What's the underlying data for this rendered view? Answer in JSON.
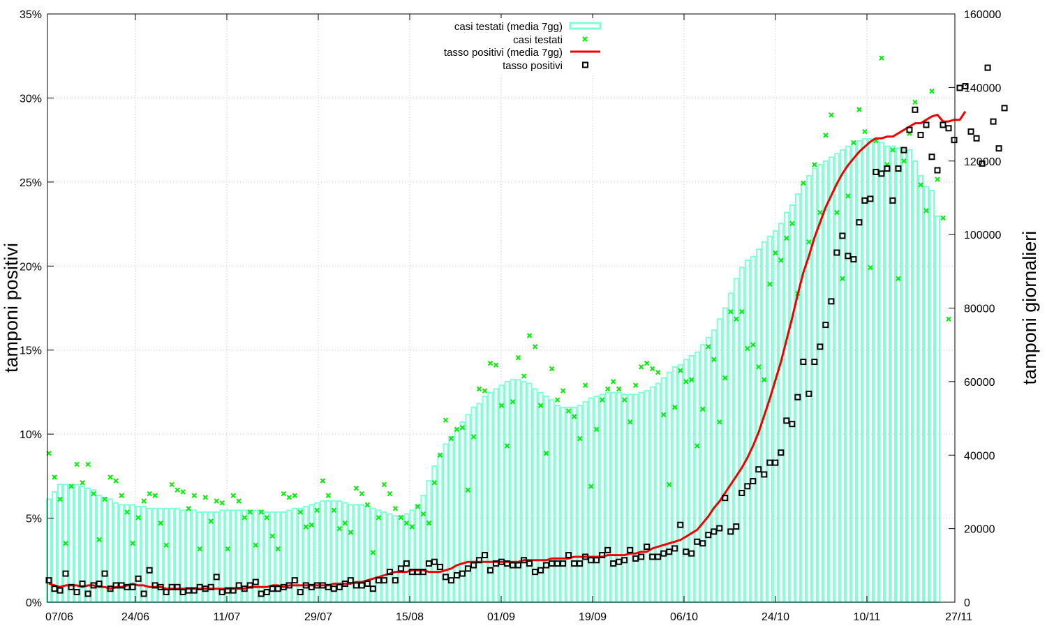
{
  "chart_data": {
    "type": "bar+line+scatter",
    "x_tick_labels": [
      "07/06",
      "24/06",
      "11/07",
      "29/07",
      "15/08",
      "01/09",
      "19/09",
      "06/10",
      "24/10",
      "10/11",
      "27/11"
    ],
    "y_left": {
      "label": "tamponi positivi",
      "ticks": [
        "0%",
        "5%",
        "10%",
        "15%",
        "20%",
        "25%",
        "30%",
        "35%"
      ],
      "range": [
        0,
        35
      ]
    },
    "y_right": {
      "label": "tamponi giornalieri",
      "ticks": [
        "0",
        "20000",
        "40000",
        "60000",
        "80000",
        "100000",
        "120000",
        "140000",
        "160000"
      ],
      "range": [
        0,
        160000
      ]
    },
    "legend": {
      "position": "top-center",
      "entries": [
        "casi testati (media 7gg)",
        "casi testati",
        "tasso positivi (media 7gg)",
        "tasso positivi"
      ]
    },
    "colors": {
      "bars": "#7fffd4",
      "scatter_tests": "#00ee00",
      "avg_rate": "#ee0000",
      "rate_points": "#000000",
      "grid": "#c8c8c8"
    },
    "series": [
      {
        "name": "casi testati (media 7gg)",
        "axis": "right",
        "kind": "bar",
        "values": [
          28000,
          30000,
          32000,
          32000,
          32000,
          32000,
          31500,
          31000,
          30500,
          29000,
          28500,
          28000,
          27000,
          26500,
          26500,
          26500,
          26000,
          26000,
          25500,
          25500,
          25500,
          25500,
          25500,
          25500,
          25000,
          25000,
          25000,
          24500,
          24500,
          24500,
          24500,
          25000,
          25000,
          25000,
          25000,
          25000,
          25000,
          25000,
          25000,
          24500,
          24500,
          24500,
          24500,
          25000,
          25500,
          25500,
          26000,
          26500,
          27000,
          27500,
          27500,
          27500,
          27500,
          27000,
          26500,
          26500,
          26500,
          26000,
          25500,
          25000,
          24500,
          24000,
          23500,
          23500,
          24000,
          25000,
          26500,
          29000,
          33000,
          37000,
          40000,
          43000,
          45000,
          47000,
          49000,
          51000,
          53000,
          54000,
          56000,
          57000,
          58000,
          59000,
          60000,
          60500,
          60500,
          60000,
          59500,
          58000,
          57000,
          56000,
          55000,
          53500,
          53000,
          53000,
          53000,
          53500,
          54500,
          55500,
          56000,
          56500,
          57000,
          57000,
          57000,
          56500,
          56500,
          56500,
          57000,
          57500,
          58500,
          59500,
          61000,
          62500,
          64000,
          64500,
          66000,
          67000,
          68000,
          70000,
          72000,
          74000,
          77000,
          80000,
          84000,
          88000,
          91000,
          93000,
          94000,
          96000,
          98000,
          99500,
          101000,
          103000,
          106000,
          108000,
          111000,
          114000,
          116000,
          118000,
          119000,
          120000,
          121000,
          122000,
          123000,
          124000,
          125000,
          125500,
          126000,
          126000,
          126000,
          125000,
          124000,
          124000,
          123500,
          123000,
          123000,
          120000,
          116000,
          113000,
          112000,
          105000
        ]
      },
      {
        "name": "casi testati",
        "axis": "right",
        "kind": "scatter",
        "values": [
          40500,
          34000,
          28000,
          16000,
          31500,
          37500,
          32500,
          37500,
          29500,
          17000,
          28000,
          34000,
          33000,
          29000,
          24500,
          16000,
          23000,
          27500,
          29500,
          29000,
          21500,
          15500,
          32000,
          30500,
          30000,
          25500,
          29000,
          14500,
          28500,
          22000,
          27500,
          27000,
          14500,
          29000,
          27500,
          23000,
          24500,
          15500,
          24500,
          23000,
          18000,
          14500,
          29500,
          28500,
          29000,
          24500,
          20500,
          21000,
          25000,
          33000,
          29000,
          25000,
          20000,
          21500,
          19000,
          31000,
          29500,
          26500,
          13500,
          23000,
          32000,
          29500,
          25500,
          23000,
          21500,
          20500,
          26000,
          24000,
          21500,
          32500,
          40000,
          49500,
          44500,
          47000,
          47500,
          30500,
          45000,
          58000,
          57500,
          65000,
          64500,
          53500,
          42500,
          54500,
          66500,
          61500,
          72500,
          69500,
          53500,
          40500,
          63500,
          55000,
          57500,
          52000,
          50500,
          44500,
          59000,
          31500,
          47000,
          55000,
          58000,
          60000,
          58000,
          55000,
          49000,
          59000,
          64000,
          65000,
          63500,
          62500,
          51000,
          32000,
          53000,
          63000,
          60000,
          60500,
          42500,
          52500,
          69500,
          66000,
          49000,
          61000,
          79000,
          77000,
          79000,
          69000,
          70000,
          64000,
          60500,
          86500,
          95000,
          93000,
          99000,
          103000,
          84000,
          114000,
          98000,
          119000,
          106000,
          127000,
          132500,
          106000,
          88000,
          110500,
          125000,
          134000,
          128000,
          91000,
          125500,
          148000,
          119000,
          123000,
          88000,
          120000,
          127500,
          136000,
          113500,
          106500,
          139000,
          115000,
          104500,
          77000
        ]
      },
      {
        "name": "tasso positivi (media 7gg)",
        "axis": "left",
        "kind": "line",
        "values": [
          1.1,
          1.0,
          0.9,
          1.0,
          1.0,
          1.0,
          0.9,
          1.0,
          1.0,
          0.9,
          0.9,
          0.8,
          0.9,
          0.9,
          1.0,
          1.1,
          1.0,
          1.0,
          0.9,
          0.9,
          0.9,
          0.8,
          0.8,
          0.8,
          0.8,
          0.8,
          0.8,
          0.8,
          0.8,
          0.8,
          0.8,
          0.8,
          0.8,
          0.8,
          0.8,
          0.8,
          0.9,
          0.9,
          0.9,
          0.9,
          1.0,
          1.0,
          0.9,
          1.0,
          1.0,
          1.0,
          1.0,
          1.0,
          1.0,
          1.0,
          1.0,
          1.1,
          1.1,
          1.1,
          1.1,
          1.2,
          1.2,
          1.3,
          1.4,
          1.5,
          1.6,
          1.7,
          1.8,
          1.8,
          1.8,
          1.9,
          1.9,
          1.9,
          1.8,
          1.8,
          1.8,
          1.9,
          2.0,
          2.2,
          2.3,
          2.4,
          2.4,
          2.4,
          2.4,
          2.4,
          2.4,
          2.4,
          2.4,
          2.4,
          2.4,
          2.5,
          2.5,
          2.5,
          2.5,
          2.5,
          2.6,
          2.6,
          2.6,
          2.6,
          2.7,
          2.7,
          2.7,
          2.7,
          2.7,
          2.7,
          2.8,
          2.8,
          2.8,
          2.8,
          2.9,
          2.9,
          3.0,
          3.0,
          3.2,
          3.3,
          3.4,
          3.5,
          3.6,
          3.7,
          3.9,
          4.1,
          4.3,
          4.7,
          5.1,
          5.6,
          6.0,
          6.5,
          7.0,
          7.5,
          8.0,
          8.6,
          9.3,
          10.1,
          11.1,
          12.1,
          13.2,
          14.3,
          15.6,
          16.9,
          18.3,
          19.6,
          20.6,
          21.7,
          22.6,
          23.5,
          24.2,
          24.9,
          25.5,
          26.0,
          26.4,
          26.8,
          27.1,
          27.4,
          27.6,
          27.6,
          27.7,
          27.7,
          27.9,
          28.1,
          28.3,
          28.5,
          28.5,
          28.7,
          28.9,
          29.0,
          28.6,
          28.6,
          28.7,
          28.7,
          29.2
        ]
      },
      {
        "name": "tasso positivi",
        "axis": "left",
        "kind": "scatter",
        "values": [
          1.3,
          0.8,
          0.7,
          1.7,
          0.9,
          0.6,
          1.1,
          0.5,
          1.0,
          1.1,
          1.7,
          0.8,
          1.0,
          1.0,
          0.9,
          0.9,
          1.4,
          0.5,
          1.9,
          1.0,
          0.9,
          0.6,
          0.9,
          0.9,
          0.6,
          0.7,
          0.7,
          0.9,
          0.8,
          0.9,
          1.5,
          0.6,
          0.7,
          0.7,
          1.0,
          0.8,
          1.0,
          1.2,
          0.5,
          0.6,
          0.8,
          0.8,
          0.9,
          1.0,
          1.3,
          0.6,
          1.0,
          0.9,
          1.0,
          1.0,
          0.9,
          0.8,
          0.9,
          1.1,
          1.3,
          1.0,
          1.0,
          1.1,
          0.8,
          1.3,
          1.3,
          1.8,
          1.3,
          2.0,
          2.3,
          1.8,
          1.8,
          1.8,
          2.3,
          2.4,
          2.1,
          1.5,
          1.3,
          1.6,
          1.7,
          2.0,
          2.2,
          2.5,
          2.8,
          1.9,
          2.3,
          2.4,
          2.3,
          2.2,
          2.2,
          2.5,
          2.3,
          1.8,
          1.9,
          2.2,
          2.3,
          2.3,
          2.3,
          2.8,
          2.3,
          2.3,
          2.7,
          2.5,
          2.5,
          2.8,
          3.1,
          2.3,
          2.4,
          2.5,
          3.1,
          2.6,
          2.7,
          3.3,
          2.7,
          2.7,
          2.9,
          3.0,
          3.2,
          4.6,
          3.0,
          2.9,
          3.6,
          3.5,
          4.0,
          4.2,
          4.4,
          6.2,
          4.2,
          4.5,
          6.5,
          6.9,
          7.2,
          7.9,
          7.6,
          8.3,
          8.3,
          8.9,
          10.8,
          10.6,
          12.2,
          14.3,
          12.4,
          14.3,
          15.2,
          16.5,
          17.9,
          20.8,
          21.8,
          20.6,
          20.4,
          22.6,
          23.9,
          24.0,
          25.6,
          25.5,
          25.8,
          23.9,
          25.8,
          26.9,
          28.1,
          29.3,
          27.8,
          28.4,
          26.5,
          25.7,
          28.4,
          28.2,
          27.5,
          30.6,
          30.7,
          28.0,
          27.6,
          26.1,
          31.8,
          28.6,
          27.0,
          29.4
        ]
      }
    ]
  }
}
